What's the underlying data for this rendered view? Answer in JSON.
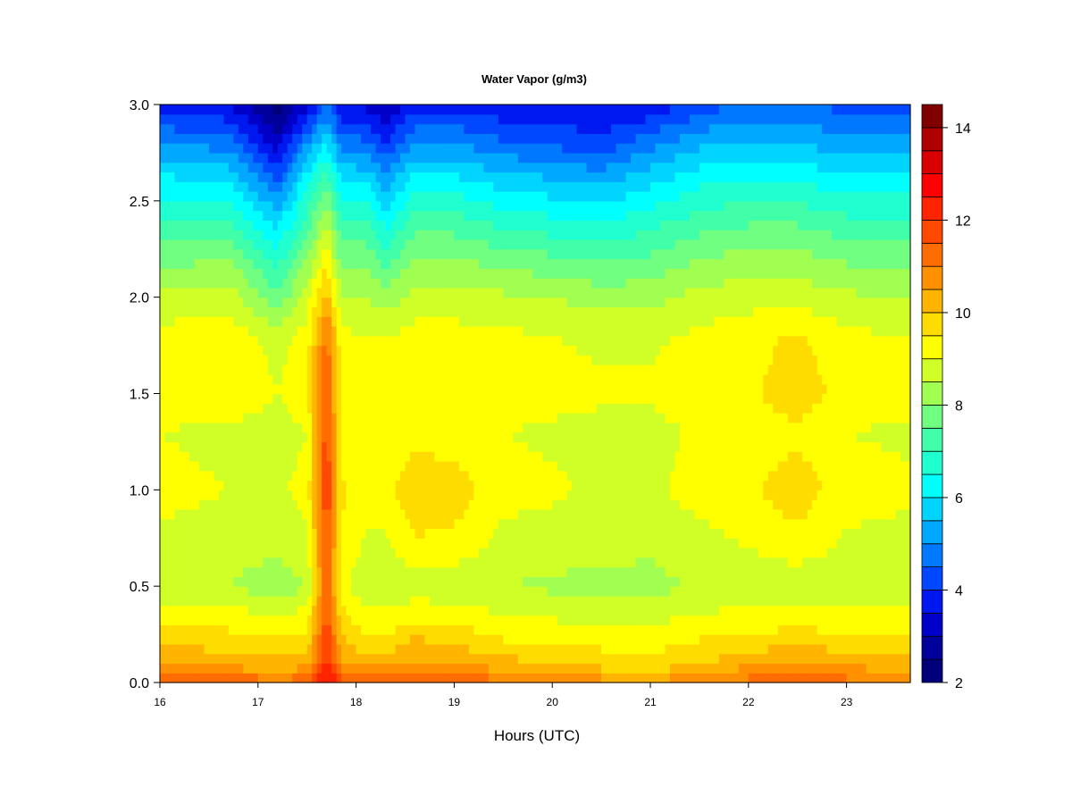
{
  "chart_data": {
    "type": "heatmap",
    "title": "Water Vapor (g/m3)",
    "xlabel": "Hours (UTC)",
    "ylabel": "",
    "xlim": [
      16,
      23.65
    ],
    "ylim": [
      0,
      3.0
    ],
    "x_ticks": [
      "16",
      "17",
      "18",
      "19",
      "20",
      "21",
      "22",
      "23"
    ],
    "y_ticks": [
      "0.0",
      "0.5",
      "1.0",
      "1.5",
      "2.0",
      "2.5",
      "3.0"
    ],
    "colorbar": {
      "range": [
        2,
        14.5
      ],
      "ticks": [
        "2",
        "4",
        "6",
        "8",
        "10",
        "12",
        "14"
      ],
      "levels": [
        2.0,
        2.5,
        3.0,
        3.5,
        4.0,
        4.5,
        5.0,
        5.5,
        6.0,
        6.5,
        7.0,
        7.5,
        8.0,
        8.5,
        9.0,
        9.5,
        10.0,
        10.5,
        11.0,
        11.5,
        12.0,
        12.5,
        13.0,
        13.5,
        14.0,
        14.5
      ],
      "colors": [
        "#00007a",
        "#00009a",
        "#0000c8",
        "#0018f0",
        "#0048ff",
        "#0078ff",
        "#00a8ff",
        "#00d4ff",
        "#00ffff",
        "#20ffd0",
        "#40ffa8",
        "#70ff80",
        "#a0ff50",
        "#d0ff28",
        "#ffff00",
        "#ffdc00",
        "#ffb400",
        "#ff9000",
        "#ff6c00",
        "#ff4800",
        "#ff2400",
        "#ff0000",
        "#d80000",
        "#b00000",
        "#800000"
      ]
    },
    "profile": {
      "heights": [
        0.0,
        0.05,
        0.1,
        0.2,
        0.3,
        0.5,
        0.7,
        1.0,
        1.3,
        1.5,
        1.8,
        2.0,
        2.2,
        2.4,
        2.6,
        2.8,
        3.0
      ],
      "times": [
        16.0,
        16.7,
        17.2,
        17.5,
        17.7,
        17.85,
        18.1,
        18.3,
        18.6,
        19.0,
        19.5,
        20.0,
        20.5,
        21.0,
        21.5,
        22.0,
        22.5,
        23.0,
        23.65
      ],
      "values": [
        [
          12.0,
          11.0,
          10.5,
          10.0,
          9.5,
          8.6,
          8.8,
          9.2,
          9.0,
          9.4,
          9.2,
          8.6,
          7.8,
          7.0,
          6.2,
          5.0,
          3.8
        ],
        [
          11.5,
          10.8,
          10.3,
          9.8,
          9.4,
          8.5,
          8.7,
          9.0,
          8.8,
          9.5,
          9.3,
          8.8,
          8.0,
          7.0,
          6.0,
          4.8,
          3.5
        ],
        [
          11.2,
          10.6,
          10.2,
          9.7,
          9.3,
          8.2,
          8.6,
          8.9,
          8.7,
          9.0,
          8.8,
          7.6,
          6.8,
          5.8,
          4.5,
          3.2,
          2.3
        ],
        [
          11.4,
          10.8,
          10.3,
          9.8,
          9.4,
          8.5,
          8.8,
          9.2,
          9.0,
          9.4,
          9.2,
          8.8,
          8.0,
          7.2,
          6.4,
          5.0,
          3.2
        ],
        [
          12.8,
          12.3,
          12.2,
          12.0,
          11.8,
          11.6,
          11.6,
          12.0,
          11.8,
          11.6,
          11.2,
          10.2,
          9.4,
          8.4,
          7.4,
          6.0,
          4.6
        ],
        [
          12.0,
          11.0,
          10.6,
          10.2,
          9.8,
          9.2,
          9.4,
          9.6,
          9.3,
          9.3,
          9.1,
          8.6,
          7.8,
          7.0,
          6.0,
          4.8,
          3.4
        ],
        [
          11.4,
          10.7,
          10.3,
          9.7,
          9.3,
          8.6,
          8.9,
          9.2,
          9.0,
          9.2,
          9.0,
          8.5,
          7.8,
          7.0,
          6.0,
          4.6,
          3.4
        ],
        [
          11.6,
          10.8,
          10.3,
          9.7,
          9.3,
          8.6,
          8.9,
          9.3,
          9.1,
          9.3,
          9.0,
          8.2,
          7.3,
          6.3,
          5.2,
          4.0,
          3.0
        ],
        [
          11.8,
          11.2,
          10.6,
          10.2,
          9.6,
          8.7,
          9.4,
          9.9,
          9.3,
          9.4,
          9.2,
          8.7,
          8.0,
          7.2,
          6.3,
          5.0,
          3.8
        ],
        [
          11.5,
          11.0,
          10.5,
          10.0,
          9.5,
          8.6,
          9.3,
          9.8,
          9.2,
          9.4,
          9.2,
          8.7,
          8.0,
          7.2,
          6.2,
          5.0,
          3.8
        ],
        [
          11.2,
          10.6,
          10.2,
          9.6,
          9.2,
          8.5,
          8.8,
          9.2,
          9.0,
          9.3,
          9.1,
          8.6,
          7.8,
          6.8,
          5.8,
          4.6,
          3.6
        ],
        [
          11.0,
          10.4,
          10.0,
          9.5,
          9.1,
          8.4,
          8.7,
          9.1,
          8.9,
          9.2,
          9.0,
          8.5,
          7.6,
          6.6,
          5.6,
          4.4,
          3.6
        ],
        [
          10.8,
          10.2,
          9.8,
          9.4,
          9.0,
          8.4,
          8.6,
          8.9,
          8.8,
          9.1,
          8.9,
          8.3,
          7.4,
          6.4,
          5.4,
          4.2,
          3.4
        ],
        [
          10.6,
          10.0,
          9.7,
          9.3,
          9.0,
          8.3,
          8.6,
          8.9,
          8.8,
          9.1,
          8.9,
          8.3,
          7.6,
          6.8,
          5.9,
          4.8,
          3.6
        ],
        [
          11.0,
          10.5,
          10.0,
          9.6,
          9.2,
          8.6,
          8.8,
          9.2,
          9.1,
          9.3,
          9.1,
          8.7,
          8.0,
          7.2,
          6.4,
          5.4,
          4.2
        ],
        [
          11.2,
          10.8,
          10.3,
          9.8,
          9.3,
          8.6,
          9.0,
          9.4,
          9.2,
          9.4,
          9.3,
          8.8,
          8.2,
          7.4,
          6.6,
          5.6,
          4.6
        ],
        [
          11.4,
          11.0,
          10.5,
          10.0,
          9.4,
          8.6,
          9.3,
          9.8,
          9.4,
          9.8,
          9.6,
          8.8,
          8.2,
          7.4,
          6.5,
          5.5,
          4.6
        ],
        [
          11.2,
          10.8,
          10.3,
          9.8,
          9.3,
          8.5,
          8.9,
          9.2,
          9.0,
          9.3,
          9.1,
          8.6,
          7.9,
          7.1,
          6.2,
          5.2,
          4.3
        ],
        [
          11.0,
          10.6,
          10.2,
          9.7,
          9.3,
          8.5,
          8.8,
          9.1,
          8.9,
          9.2,
          9.0,
          8.5,
          7.8,
          7.0,
          6.2,
          5.2,
          4.2
        ]
      ]
    }
  }
}
